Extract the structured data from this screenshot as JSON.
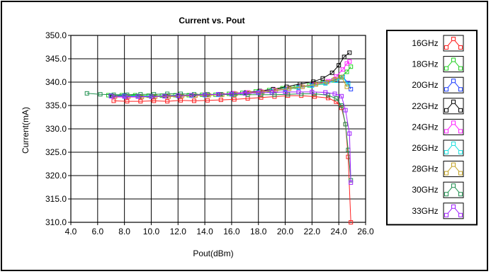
{
  "chart_data": {
    "type": "line",
    "title": "Current vs. Pout",
    "xlabel": "Pout(dBm)",
    "ylabel": "Current(mA)",
    "xlim": [
      4.0,
      26.0
    ],
    "ylim": [
      310.0,
      350.0
    ],
    "x_ticks": [
      "4.0",
      "6.0",
      "8.0",
      "10.0",
      "12.0",
      "14.0",
      "16.0",
      "18.0",
      "20.0",
      "22.0",
      "24.0",
      "26.0"
    ],
    "y_ticks": [
      "310.0",
      "315.0",
      "320.0",
      "325.0",
      "330.0",
      "335.0",
      "340.0",
      "345.0",
      "350.0"
    ],
    "grid": true,
    "legend_position": "right",
    "series": [
      {
        "name": "16GHz",
        "color": "#ff2020",
        "x": [
          7.2,
          8.2,
          9.2,
          10.2,
          11.2,
          12.2,
          13.2,
          14.2,
          15.2,
          16.2,
          17.2,
          18.2,
          19.2,
          20.2,
          21.2,
          22.2,
          23.2,
          23.8,
          24.2,
          24.5,
          24.7,
          24.9
        ],
        "y": [
          336.0,
          335.9,
          335.9,
          336.0,
          335.9,
          336.1,
          336.0,
          336.1,
          336.2,
          336.3,
          336.5,
          336.7,
          336.9,
          337.1,
          337.1,
          336.9,
          336.6,
          335.8,
          334.5,
          331.0,
          324.0,
          310.0
        ]
      },
      {
        "name": "18GHz",
        "color": "#20d020",
        "x": [
          6.8,
          7.8,
          8.8,
          9.8,
          10.8,
          11.8,
          12.8,
          13.8,
          14.8,
          15.8,
          16.8,
          17.8,
          18.8,
          19.8,
          20.8,
          21.8,
          22.8,
          23.6,
          24.1,
          24.6,
          24.9
        ],
        "y": [
          337.2,
          337.2,
          337.2,
          337.1,
          337.1,
          337.2,
          337.2,
          337.3,
          337.3,
          337.5,
          337.7,
          338.0,
          338.3,
          338.7,
          339.0,
          339.3,
          339.9,
          340.4,
          341.0,
          342.2,
          343.3
        ]
      },
      {
        "name": "20GHz",
        "color": "#2040ff",
        "x": [
          7.0,
          8.0,
          9.0,
          10.0,
          11.0,
          12.0,
          13.0,
          14.0,
          15.0,
          16.0,
          17.0,
          18.0,
          19.0,
          20.0,
          21.0,
          22.0,
          23.0,
          23.8,
          24.3,
          24.7,
          24.9
        ],
        "y": [
          337.1,
          337.1,
          337.0,
          337.0,
          337.0,
          337.1,
          337.1,
          337.2,
          337.3,
          337.4,
          337.6,
          337.8,
          338.1,
          338.5,
          338.9,
          339.4,
          339.9,
          340.5,
          341.1,
          339.8,
          338.5
        ]
      },
      {
        "name": "22GHz",
        "color": "#000000",
        "x": [
          7.1,
          8.1,
          9.1,
          10.1,
          11.1,
          12.1,
          13.1,
          14.1,
          15.1,
          16.1,
          17.1,
          18.1,
          19.1,
          20.1,
          21.1,
          22.1,
          22.8,
          23.5,
          24.0,
          24.4,
          24.8
        ],
        "y": [
          337.0,
          337.0,
          336.9,
          336.9,
          337.0,
          337.0,
          337.1,
          337.2,
          337.4,
          337.6,
          337.8,
          338.1,
          338.5,
          339.0,
          339.6,
          340.1,
          340.8,
          342.0,
          343.6,
          345.4,
          346.3
        ]
      },
      {
        "name": "24GHz",
        "color": "#ff20ff",
        "x": [
          7.2,
          8.2,
          9.2,
          10.2,
          11.2,
          12.2,
          13.2,
          14.2,
          15.2,
          16.2,
          17.2,
          18.2,
          19.2,
          20.2,
          21.2,
          22.2,
          23.2,
          23.8,
          24.3,
          24.6,
          24.8
        ],
        "y": [
          336.8,
          336.8,
          336.8,
          336.9,
          336.9,
          337.0,
          337.1,
          337.2,
          337.4,
          337.6,
          337.8,
          338.0,
          338.3,
          338.6,
          339.0,
          339.5,
          340.2,
          341.2,
          342.7,
          344.0,
          344.4
        ]
      },
      {
        "name": "26GHz",
        "color": "#20e0e0",
        "x": [
          7.0,
          8.0,
          9.0,
          10.0,
          11.0,
          12.0,
          13.0,
          14.0,
          15.0,
          16.0,
          17.0,
          18.0,
          19.0,
          20.0,
          21.0,
          22.0,
          23.0,
          23.8,
          24.3,
          24.7
        ],
        "y": [
          337.0,
          337.0,
          337.0,
          337.0,
          337.0,
          337.1,
          337.1,
          337.2,
          337.3,
          337.4,
          337.6,
          337.8,
          338.1,
          338.4,
          338.8,
          339.2,
          339.7,
          340.3,
          341.0,
          339.5
        ]
      },
      {
        "name": "28GHz",
        "color": "#c0a020",
        "x": [
          7.3,
          8.3,
          9.3,
          10.3,
          11.3,
          12.3,
          13.3,
          14.3,
          15.3,
          16.3,
          17.3,
          18.3,
          19.3,
          20.3,
          21.3,
          22.3,
          23.1,
          23.7,
          24.2,
          24.6
        ],
        "y": [
          336.9,
          336.9,
          336.8,
          336.9,
          336.9,
          337.0,
          337.1,
          337.2,
          337.3,
          337.5,
          337.7,
          337.9,
          338.2,
          338.6,
          339.0,
          339.5,
          340.0,
          340.6,
          341.1,
          339.0
        ]
      },
      {
        "name": "30GHz",
        "color": "#209050",
        "x": [
          5.2,
          6.2,
          7.2,
          8.2,
          9.2,
          10.2,
          11.2,
          12.2,
          13.2,
          14.2,
          15.2,
          16.2,
          17.2,
          18.2,
          19.2,
          20.2,
          21.2,
          22.2,
          23.2,
          23.8,
          24.2,
          24.5,
          24.7,
          24.9
        ],
        "y": [
          337.6,
          337.4,
          337.3,
          337.3,
          337.4,
          337.4,
          337.5,
          337.5,
          337.4,
          337.4,
          337.4,
          337.3,
          337.3,
          337.3,
          337.3,
          337.4,
          337.5,
          337.5,
          337.2,
          336.5,
          335.0,
          331.0,
          325.5,
          319.0
        ]
      },
      {
        "name": "33GHz",
        "color": "#a020ff",
        "x": [
          7.0,
          8.0,
          9.0,
          10.0,
          11.0,
          12.0,
          13.0,
          14.0,
          15.0,
          16.0,
          17.0,
          18.0,
          19.0,
          20.0,
          21.0,
          22.0,
          23.0,
          23.7,
          24.2,
          24.5,
          24.8,
          24.9
        ],
        "y": [
          337.0,
          336.9,
          336.9,
          336.9,
          337.0,
          337.1,
          337.2,
          337.3,
          337.4,
          337.5,
          337.6,
          337.7,
          337.8,
          337.9,
          337.9,
          337.9,
          337.8,
          337.5,
          337.0,
          334.0,
          329.0,
          318.5
        ]
      }
    ]
  }
}
